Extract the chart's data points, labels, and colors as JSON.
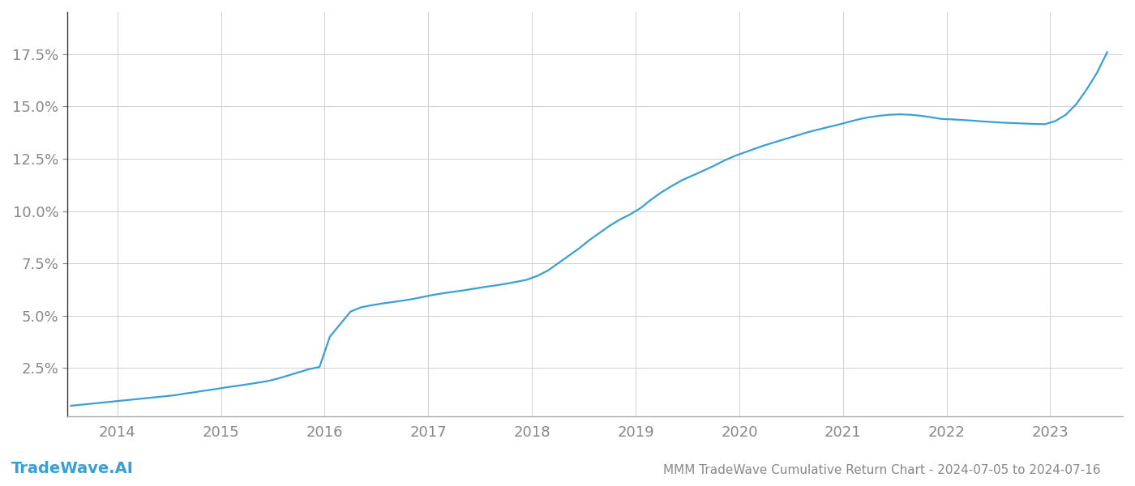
{
  "title": "MMM TradeWave Cumulative Return Chart - 2024-07-05 to 2024-07-16",
  "watermark": "TradeWave.AI",
  "line_color": "#3a9fd4",
  "background_color": "#ffffff",
  "grid_color": "#d0d0d0",
  "x_years": [
    2014,
    2015,
    2016,
    2017,
    2018,
    2019,
    2020,
    2021,
    2022,
    2023
  ],
  "x_values": [
    2013.55,
    2013.65,
    2013.75,
    2013.85,
    2013.95,
    2014.05,
    2014.15,
    2014.25,
    2014.35,
    2014.45,
    2014.55,
    2014.65,
    2014.75,
    2014.85,
    2014.95,
    2015.05,
    2015.15,
    2015.25,
    2015.35,
    2015.45,
    2015.55,
    2015.65,
    2015.75,
    2015.85,
    2015.95,
    2016.05,
    2016.15,
    2016.25,
    2016.35,
    2016.45,
    2016.55,
    2016.65,
    2016.75,
    2016.85,
    2016.95,
    2017.05,
    2017.15,
    2017.25,
    2017.35,
    2017.45,
    2017.55,
    2017.65,
    2017.75,
    2017.85,
    2017.95,
    2018.05,
    2018.15,
    2018.25,
    2018.35,
    2018.45,
    2018.55,
    2018.65,
    2018.75,
    2018.85,
    2018.95,
    2019.05,
    2019.15,
    2019.25,
    2019.35,
    2019.45,
    2019.55,
    2019.65,
    2019.75,
    2019.85,
    2019.95,
    2020.05,
    2020.15,
    2020.25,
    2020.35,
    2020.45,
    2020.55,
    2020.65,
    2020.75,
    2020.85,
    2020.95,
    2021.05,
    2021.15,
    2021.25,
    2021.35,
    2021.45,
    2021.55,
    2021.65,
    2021.75,
    2021.85,
    2021.95,
    2022.05,
    2022.15,
    2022.25,
    2022.35,
    2022.45,
    2022.55,
    2022.65,
    2022.75,
    2022.85,
    2022.95,
    2023.05,
    2023.15,
    2023.25,
    2023.35,
    2023.45,
    2023.55
  ],
  "y_values": [
    0.007,
    0.0075,
    0.008,
    0.0085,
    0.009,
    0.0095,
    0.01,
    0.0105,
    0.011,
    0.0115,
    0.012,
    0.0128,
    0.0135,
    0.0143,
    0.015,
    0.0158,
    0.0165,
    0.0172,
    0.018,
    0.0188,
    0.02,
    0.0215,
    0.023,
    0.0245,
    0.0255,
    0.04,
    0.046,
    0.052,
    0.054,
    0.055,
    0.0558,
    0.0565,
    0.0572,
    0.058,
    0.059,
    0.06,
    0.0608,
    0.0615,
    0.0622,
    0.063,
    0.0638,
    0.0645,
    0.0653,
    0.0662,
    0.0672,
    0.069,
    0.0715,
    0.075,
    0.0785,
    0.082,
    0.086,
    0.0895,
    0.093,
    0.096,
    0.0985,
    0.1015,
    0.1055,
    0.109,
    0.112,
    0.1148,
    0.117,
    0.1192,
    0.1215,
    0.124,
    0.1262,
    0.128,
    0.1298,
    0.1315,
    0.133,
    0.1345,
    0.136,
    0.1375,
    0.1388,
    0.14,
    0.1412,
    0.1425,
    0.1438,
    0.1448,
    0.1455,
    0.146,
    0.1462,
    0.146,
    0.1455,
    0.1448,
    0.144,
    0.1438,
    0.1435,
    0.1432,
    0.1428,
    0.1425,
    0.1422,
    0.142,
    0.1418,
    0.1416,
    0.1415,
    0.143,
    0.146,
    0.151,
    0.158,
    0.166,
    0.176
  ],
  "ylim": [
    0.002,
    0.195
  ],
  "yticks": [
    0.025,
    0.05,
    0.075,
    0.1,
    0.125,
    0.15,
    0.175
  ],
  "tick_color": "#888888",
  "title_fontsize": 11,
  "tick_fontsize": 13,
  "watermark_fontsize": 14,
  "line_width": 1.6
}
